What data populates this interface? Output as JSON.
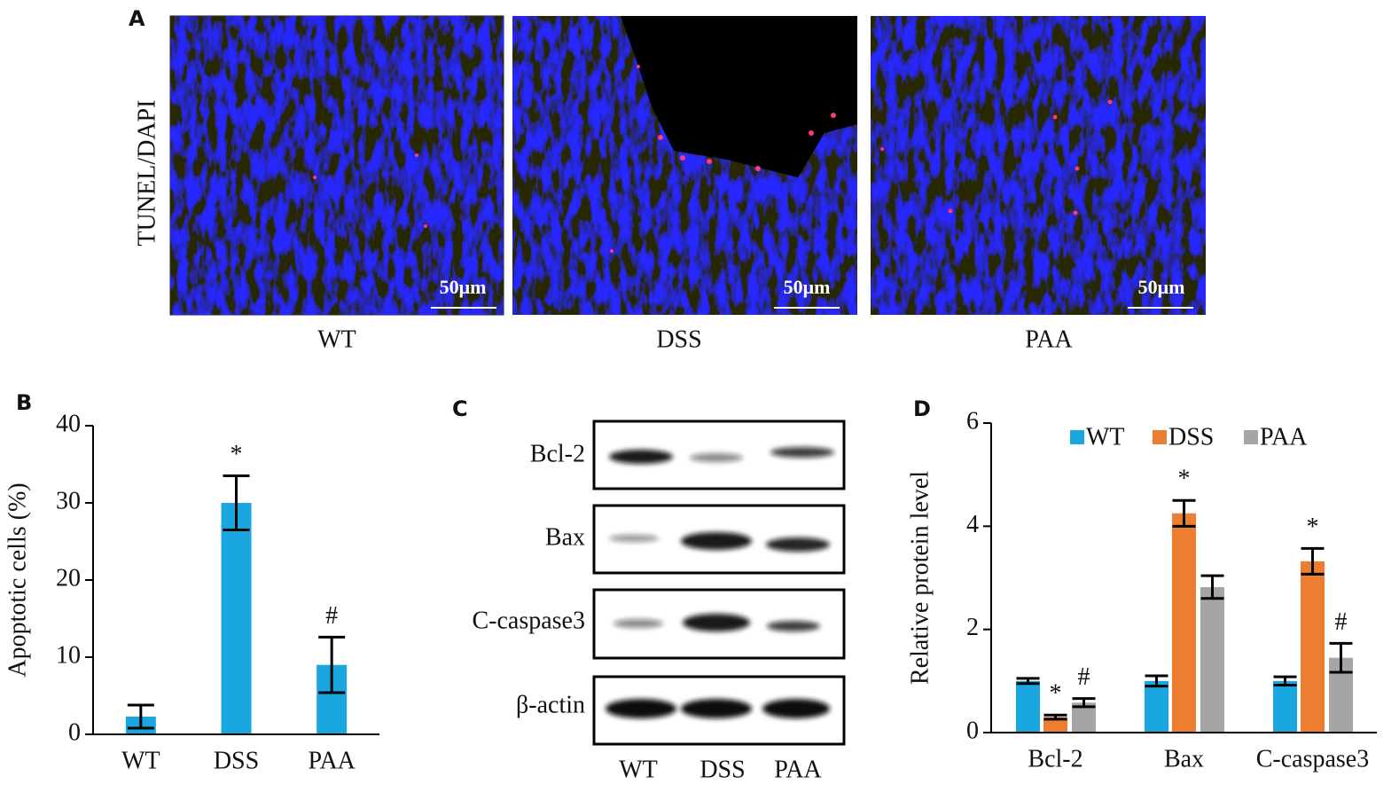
{
  "panel_a": {
    "label": "A",
    "ylabel": "TUNEL/DAPI",
    "images": [
      {
        "caption": "WT",
        "scale_bar": "50μm"
      },
      {
        "caption": "DSS",
        "scale_bar": "50μm"
      },
      {
        "caption": "PAA",
        "scale_bar": "50μm"
      }
    ]
  },
  "panel_c": {
    "label": "C",
    "rows": [
      "Bcl-2",
      "Bax",
      "C-caspase3",
      "β-actin"
    ],
    "lanes": [
      "WT",
      "DSS",
      "PAA"
    ]
  },
  "chart_data": [
    {
      "type": "bar",
      "label": "B",
      "ylabel": "Apoptotic cells (%)",
      "categories": [
        "WT",
        "DSS",
        "PAA"
      ],
      "values": [
        2.3,
        30,
        9
      ],
      "errors": [
        1.5,
        3.5,
        3.6
      ],
      "annotations": [
        null,
        "*",
        "#"
      ],
      "color": "#1aa7e0",
      "ylim": [
        0,
        40
      ],
      "yticks": [
        0,
        10,
        20,
        30,
        40
      ]
    },
    {
      "type": "bar",
      "label": "D",
      "ylabel": "Relative protein level",
      "categories": [
        "Bcl-2",
        "Bax",
        "C-caspase3"
      ],
      "series": [
        {
          "name": "WT",
          "color": "#1aa7e0",
          "values": [
            1,
            1,
            1
          ],
          "errors": [
            0.05,
            0.1,
            0.08
          ],
          "annotations": [
            null,
            null,
            null
          ]
        },
        {
          "name": "DSS",
          "color": "#ed7d31",
          "values": [
            0.3,
            4.25,
            3.32
          ],
          "errors": [
            0.04,
            0.25,
            0.25
          ],
          "annotations": [
            "*",
            "*",
            "*"
          ]
        },
        {
          "name": "PAA",
          "color": "#a5a5a5",
          "values": [
            0.58,
            2.82,
            1.45
          ],
          "errors": [
            0.08,
            0.22,
            0.28
          ],
          "annotations": [
            "#",
            null,
            "#"
          ]
        }
      ],
      "legend": "top",
      "ylim": [
        0,
        6
      ],
      "yticks": [
        0,
        2,
        4,
        6
      ]
    }
  ]
}
